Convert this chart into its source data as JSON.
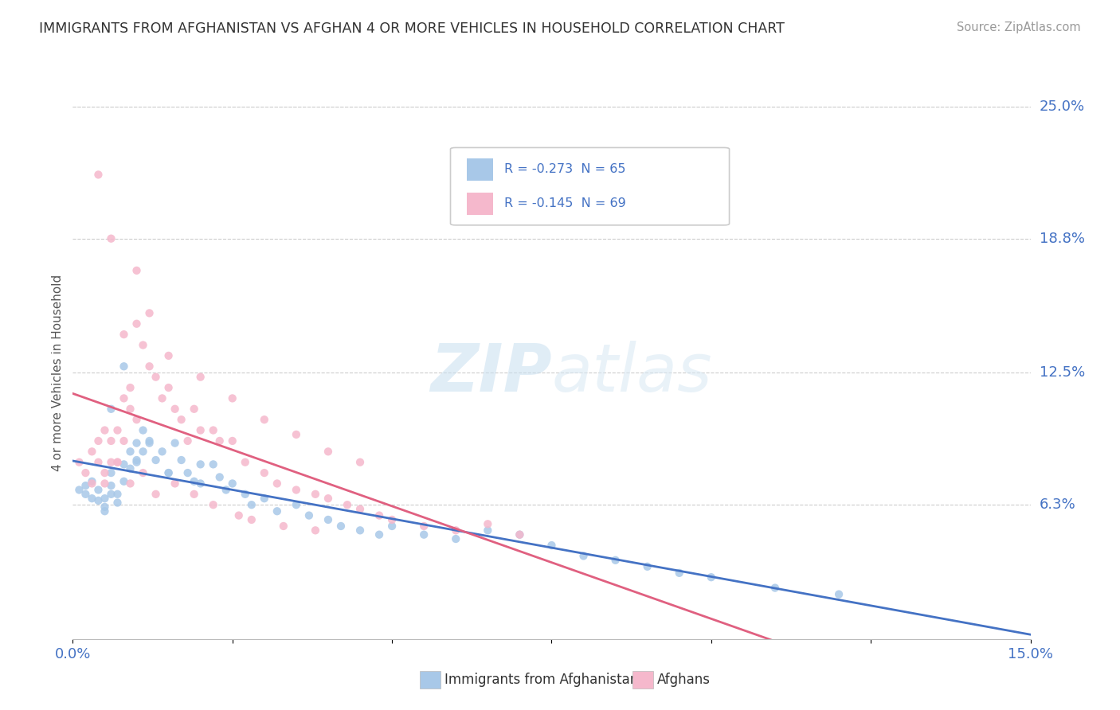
{
  "title": "IMMIGRANTS FROM AFGHANISTAN VS AFGHAN 4 OR MORE VEHICLES IN HOUSEHOLD CORRELATION CHART",
  "source_text": "Source: ZipAtlas.com",
  "ylabel": "4 or more Vehicles in Household",
  "xlim": [
    0,
    0.15
  ],
  "ylim": [
    0,
    0.25
  ],
  "ytick_labels_right": [
    "25.0%",
    "18.8%",
    "12.5%",
    "6.3%"
  ],
  "ytick_positions_right": [
    0.25,
    0.188,
    0.125,
    0.063
  ],
  "legend_labels_bottom": [
    "Immigrants from Afghanistan",
    "Afghans"
  ],
  "blue_color": "#a8c8e8",
  "pink_color": "#f5b8cc",
  "blue_line_color": "#4472c4",
  "pink_line_color": "#e06080",
  "watermark_zip": "ZIP",
  "watermark_atlas": "atlas",
  "blue_scatter": {
    "x": [
      0.001,
      0.002,
      0.002,
      0.003,
      0.003,
      0.004,
      0.004,
      0.005,
      0.005,
      0.005,
      0.006,
      0.006,
      0.006,
      0.007,
      0.007,
      0.008,
      0.008,
      0.009,
      0.009,
      0.01,
      0.01,
      0.011,
      0.011,
      0.012,
      0.013,
      0.014,
      0.015,
      0.016,
      0.017,
      0.018,
      0.019,
      0.02,
      0.022,
      0.023,
      0.024,
      0.025,
      0.027,
      0.028,
      0.03,
      0.032,
      0.035,
      0.037,
      0.04,
      0.042,
      0.045,
      0.048,
      0.05,
      0.055,
      0.06,
      0.065,
      0.07,
      0.075,
      0.08,
      0.085,
      0.09,
      0.095,
      0.1,
      0.11,
      0.12,
      0.006,
      0.008,
      0.01,
      0.012,
      0.015,
      0.02
    ],
    "y": [
      0.07,
      0.068,
      0.072,
      0.066,
      0.074,
      0.065,
      0.07,
      0.062,
      0.066,
      0.06,
      0.078,
      0.072,
      0.068,
      0.068,
      0.064,
      0.082,
      0.074,
      0.088,
      0.08,
      0.092,
      0.084,
      0.098,
      0.088,
      0.092,
      0.084,
      0.088,
      0.078,
      0.092,
      0.084,
      0.078,
      0.074,
      0.082,
      0.082,
      0.076,
      0.07,
      0.073,
      0.068,
      0.063,
      0.066,
      0.06,
      0.063,
      0.058,
      0.056,
      0.053,
      0.051,
      0.049,
      0.053,
      0.049,
      0.047,
      0.051,
      0.049,
      0.044,
      0.039,
      0.037,
      0.034,
      0.031,
      0.029,
      0.024,
      0.021,
      0.108,
      0.128,
      0.083,
      0.093,
      0.078,
      0.073
    ]
  },
  "pink_scatter": {
    "x": [
      0.001,
      0.002,
      0.003,
      0.003,
      0.004,
      0.004,
      0.005,
      0.005,
      0.006,
      0.006,
      0.007,
      0.007,
      0.008,
      0.008,
      0.009,
      0.009,
      0.01,
      0.01,
      0.011,
      0.012,
      0.013,
      0.014,
      0.015,
      0.016,
      0.017,
      0.018,
      0.019,
      0.02,
      0.022,
      0.023,
      0.025,
      0.027,
      0.03,
      0.032,
      0.035,
      0.038,
      0.04,
      0.043,
      0.045,
      0.048,
      0.05,
      0.055,
      0.06,
      0.065,
      0.07,
      0.004,
      0.006,
      0.008,
      0.01,
      0.012,
      0.015,
      0.02,
      0.025,
      0.03,
      0.035,
      0.04,
      0.045,
      0.005,
      0.007,
      0.009,
      0.011,
      0.013,
      0.016,
      0.019,
      0.022,
      0.026,
      0.028,
      0.033,
      0.038
    ],
    "y": [
      0.083,
      0.078,
      0.073,
      0.088,
      0.093,
      0.083,
      0.078,
      0.098,
      0.083,
      0.093,
      0.083,
      0.098,
      0.113,
      0.093,
      0.118,
      0.108,
      0.148,
      0.103,
      0.138,
      0.128,
      0.123,
      0.113,
      0.118,
      0.108,
      0.103,
      0.093,
      0.108,
      0.098,
      0.098,
      0.093,
      0.093,
      0.083,
      0.078,
      0.073,
      0.07,
      0.068,
      0.066,
      0.063,
      0.061,
      0.058,
      0.056,
      0.053,
      0.051,
      0.054,
      0.049,
      0.218,
      0.188,
      0.143,
      0.173,
      0.153,
      0.133,
      0.123,
      0.113,
      0.103,
      0.096,
      0.088,
      0.083,
      0.073,
      0.083,
      0.073,
      0.078,
      0.068,
      0.073,
      0.068,
      0.063,
      0.058,
      0.056,
      0.053,
      0.051
    ]
  }
}
